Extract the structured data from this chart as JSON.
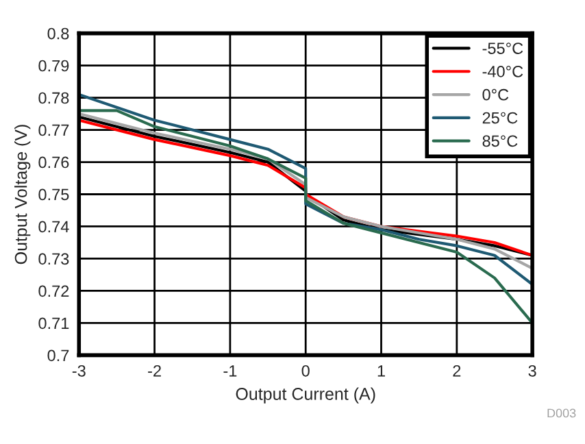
{
  "chart_data": {
    "type": "line",
    "xlabel": "Output Current (A)",
    "ylabel": "Output Voltage (V)",
    "xlim": [
      -3,
      3
    ],
    "xticks": [
      -3,
      -2,
      -1,
      0,
      1,
      2,
      3
    ],
    "ylim": [
      0.7,
      0.8
    ],
    "yticks": [
      0.7,
      0.71,
      0.72,
      0.73,
      0.74,
      0.75,
      0.76,
      0.77,
      0.78,
      0.79,
      0.8
    ],
    "grid": true,
    "legend": "top right",
    "annotations": [
      "D003"
    ],
    "series": [
      {
        "name": "-55°C",
        "color": "#000000",
        "x": [
          -3,
          -2,
          -1,
          -0.5,
          0,
          0,
          0.5,
          1,
          2,
          2.5,
          3
        ],
        "values": [
          0.774,
          0.768,
          0.763,
          0.76,
          0.751,
          0.75,
          0.742,
          0.739,
          0.736,
          0.734,
          0.731
        ]
      },
      {
        "name": "-40°C",
        "color": "#ff0000",
        "x": [
          -3,
          -2,
          -1,
          -0.5,
          0,
          0,
          0.5,
          1,
          2,
          2.5,
          3
        ],
        "values": [
          0.773,
          0.767,
          0.762,
          0.759,
          0.752,
          0.75,
          0.743,
          0.74,
          0.737,
          0.735,
          0.731
        ]
      },
      {
        "name": "0°C",
        "color": "#a6a6a6",
        "x": [
          -3,
          -2,
          -1,
          -0.5,
          0,
          0,
          0.5,
          1,
          2,
          2.5,
          3
        ],
        "values": [
          0.775,
          0.769,
          0.764,
          0.761,
          0.753,
          0.749,
          0.743,
          0.74,
          0.736,
          0.733,
          0.727
        ]
      },
      {
        "name": "25°C",
        "color": "#1f5a73",
        "x": [
          -3,
          -2,
          -1,
          -0.5,
          0,
          0,
          0.5,
          1,
          1.5,
          2,
          2.5,
          3
        ],
        "values": [
          0.781,
          0.773,
          0.767,
          0.764,
          0.758,
          0.747,
          0.741,
          0.739,
          0.736,
          0.734,
          0.731,
          0.722
        ]
      },
      {
        "name": "85°C",
        "color": "#2a6b4f",
        "x": [
          -3,
          -2.5,
          -2,
          -1,
          -0.5,
          0,
          0,
          0.5,
          1,
          1.5,
          2,
          2.5,
          3
        ],
        "values": [
          0.776,
          0.776,
          0.771,
          0.765,
          0.761,
          0.755,
          0.748,
          0.741,
          0.738,
          0.735,
          0.732,
          0.724,
          0.71
        ]
      }
    ]
  }
}
